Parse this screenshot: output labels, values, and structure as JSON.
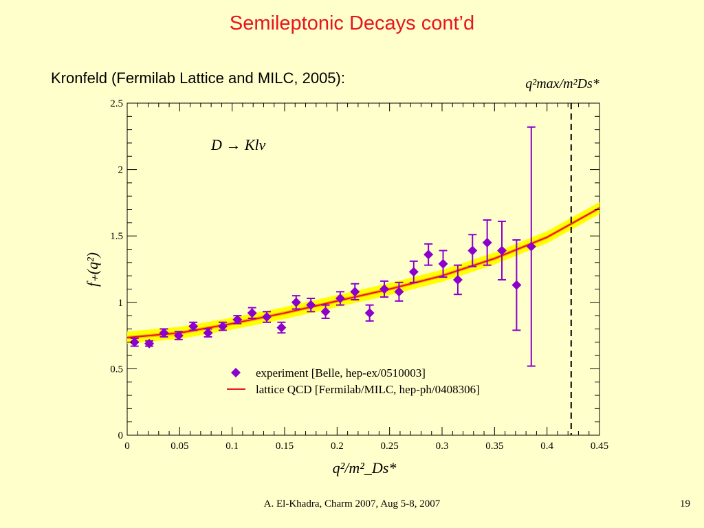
{
  "slide": {
    "title": "Semileptonic Decays cont’d",
    "subtitle": "Kronfeld (Fermilab Lattice and MILC, 2005):",
    "footer": "A. El-Khadra, Charm 2007, Aug 5-8, 2007",
    "page_number": "19"
  },
  "chart_data": {
    "type": "scatter",
    "annotation": "D → Klν",
    "xlabel": "q²/m²_Ds*",
    "ylabel": "f₊(q²)",
    "xlim": [
      0,
      0.45
    ],
    "ylim": [
      0,
      2.5
    ],
    "x_ticks": [
      0,
      0.05,
      0.1,
      0.15,
      0.2,
      0.25,
      0.3,
      0.35,
      0.4,
      0.45
    ],
    "x_tick_labels": [
      "0",
      "0.05",
      "0.1",
      "0.15",
      "0.2",
      "0.25",
      "0.3",
      "0.35",
      "0.4",
      "0.45"
    ],
    "y_ticks": [
      0,
      0.5,
      1,
      1.5,
      2,
      2.5
    ],
    "y_tick_labels": [
      "0",
      "0.5",
      "1",
      "1.5",
      "2",
      "2.5"
    ],
    "qmax_line": {
      "x": 0.423,
      "label": "q²max/m²Ds*"
    },
    "legend": {
      "placement": "bottom-right"
    },
    "series": [
      {
        "name": "experiment [Belle, hep-ex/0510003]",
        "marker": "diamond",
        "color": "#8B00CC",
        "points": [
          {
            "x": 0.007,
            "y": 0.7,
            "err": 0.03
          },
          {
            "x": 0.021,
            "y": 0.69,
            "err": 0.02
          },
          {
            "x": 0.035,
            "y": 0.77,
            "err": 0.03
          },
          {
            "x": 0.049,
            "y": 0.75,
            "err": 0.03
          },
          {
            "x": 0.063,
            "y": 0.82,
            "err": 0.03
          },
          {
            "x": 0.077,
            "y": 0.77,
            "err": 0.03
          },
          {
            "x": 0.091,
            "y": 0.82,
            "err": 0.03
          },
          {
            "x": 0.105,
            "y": 0.87,
            "err": 0.03
          },
          {
            "x": 0.119,
            "y": 0.92,
            "err": 0.04
          },
          {
            "x": 0.133,
            "y": 0.89,
            "err": 0.04
          },
          {
            "x": 0.147,
            "y": 0.81,
            "err": 0.04
          },
          {
            "x": 0.161,
            "y": 1.0,
            "err": 0.05
          },
          {
            "x": 0.175,
            "y": 0.98,
            "err": 0.05
          },
          {
            "x": 0.189,
            "y": 0.93,
            "err": 0.05
          },
          {
            "x": 0.203,
            "y": 1.03,
            "err": 0.05
          },
          {
            "x": 0.217,
            "y": 1.08,
            "err": 0.06
          },
          {
            "x": 0.231,
            "y": 0.92,
            "err": 0.06
          },
          {
            "x": 0.245,
            "y": 1.1,
            "err": 0.06
          },
          {
            "x": 0.259,
            "y": 1.08,
            "err": 0.07
          },
          {
            "x": 0.273,
            "y": 1.23,
            "err": 0.08
          },
          {
            "x": 0.287,
            "y": 1.36,
            "err": 0.08
          },
          {
            "x": 0.301,
            "y": 1.29,
            "err": 0.1
          },
          {
            "x": 0.315,
            "y": 1.17,
            "err": 0.11
          },
          {
            "x": 0.329,
            "y": 1.39,
            "err": 0.12
          },
          {
            "x": 0.343,
            "y": 1.45,
            "err": 0.17
          },
          {
            "x": 0.357,
            "y": 1.39,
            "err": 0.22
          },
          {
            "x": 0.371,
            "y": 1.13,
            "err": 0.34
          },
          {
            "x": 0.385,
            "y": 1.42,
            "err": 0.9
          }
        ]
      },
      {
        "name": "lattice QCD [Fermilab/MILC, hep-ph/0408306]",
        "marker": "line",
        "color": "#E8141E",
        "band_color": "#FFFF00",
        "band_orange_color": "#FFB000",
        "band_halfwidth": 0.045,
        "inner_band_halfwidth": 0.012,
        "curve": [
          {
            "x": 0.0,
            "y": 0.735
          },
          {
            "x": 0.05,
            "y": 0.77
          },
          {
            "x": 0.1,
            "y": 0.84
          },
          {
            "x": 0.15,
            "y": 0.92
          },
          {
            "x": 0.2,
            "y": 1.01
          },
          {
            "x": 0.25,
            "y": 1.1
          },
          {
            "x": 0.3,
            "y": 1.2
          },
          {
            "x": 0.35,
            "y": 1.33
          },
          {
            "x": 0.4,
            "y": 1.49
          },
          {
            "x": 0.45,
            "y": 1.71
          }
        ]
      }
    ]
  }
}
